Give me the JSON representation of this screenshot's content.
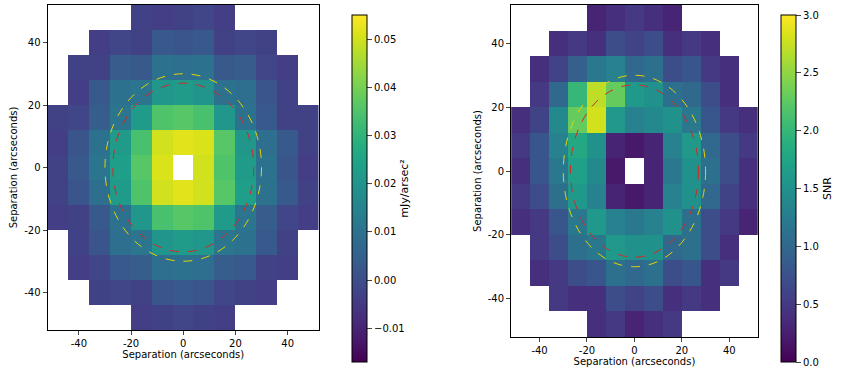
{
  "chart_data": [
    {
      "type": "heatmap",
      "color": "viridis",
      "line_style": "dashed",
      "xlabel": "Separation (arcseconds)",
      "ylabel": "Separation (arcseconds)",
      "xlim": [
        -52,
        52
      ],
      "ylim": [
        -52,
        52
      ],
      "xticks": [
        -40,
        -20,
        0,
        20,
        40
      ],
      "yticks": [
        -40,
        -20,
        0,
        20,
        40
      ],
      "x": [
        -48,
        -40,
        -32,
        -24,
        -16,
        -8,
        0,
        8,
        16,
        24,
        32,
        40,
        48
      ],
      "y": [
        -48,
        -40,
        -32,
        -24,
        -16,
        -8,
        0,
        8,
        16,
        24,
        32,
        40,
        48
      ],
      "z": [
        [
          null,
          null,
          null,
          null,
          -0.004,
          -0.003,
          -0.002,
          -0.003,
          -0.004,
          null,
          null,
          null,
          null
        ],
        [
          null,
          null,
          -0.003,
          -0.002,
          -0.003,
          0.002,
          0.003,
          0.002,
          -0.002,
          -0.003,
          -0.004,
          null,
          null
        ],
        [
          null,
          -0.004,
          -0.002,
          0.003,
          0.004,
          0.009,
          0.01,
          0.009,
          0.004,
          0.003,
          -0.003,
          -0.004,
          null
        ],
        [
          null,
          -0.003,
          0.002,
          0.009,
          0.011,
          0.02,
          0.022,
          0.021,
          0.011,
          0.01,
          0.003,
          -0.003,
          null
        ],
        [
          -0.004,
          -0.003,
          0.003,
          0.01,
          0.021,
          0.034,
          0.036,
          0.035,
          0.022,
          0.011,
          0.004,
          -0.002,
          -0.004
        ],
        [
          -0.003,
          0.002,
          0.009,
          0.022,
          0.035,
          0.05,
          0.052,
          0.05,
          0.036,
          0.023,
          0.01,
          0.003,
          -0.003
        ],
        [
          -0.003,
          0.003,
          0.011,
          0.023,
          0.036,
          0.051,
          null,
          0.05,
          0.035,
          0.022,
          0.01,
          0.002,
          -0.004
        ],
        [
          -0.004,
          0.002,
          0.01,
          0.022,
          0.034,
          0.05,
          0.052,
          0.051,
          0.036,
          0.021,
          0.009,
          0.003,
          -0.003
        ],
        [
          -0.003,
          -0.002,
          0.004,
          0.011,
          0.022,
          0.035,
          0.036,
          0.034,
          0.021,
          0.01,
          0.003,
          -0.003,
          -0.003
        ],
        [
          null,
          -0.004,
          0.003,
          0.01,
          0.011,
          0.021,
          0.022,
          0.02,
          0.01,
          0.009,
          0.002,
          -0.003,
          null
        ],
        [
          null,
          -0.003,
          -0.003,
          0.004,
          0.003,
          0.01,
          0.009,
          0.01,
          0.003,
          0.004,
          -0.002,
          -0.004,
          null
        ],
        [
          null,
          null,
          -0.004,
          -0.002,
          -0.003,
          0.003,
          0.002,
          0.003,
          -0.003,
          -0.002,
          -0.003,
          null,
          null
        ],
        [
          null,
          null,
          null,
          null,
          -0.003,
          -0.004,
          -0.003,
          -0.002,
          -0.004,
          null,
          null,
          null,
          null
        ]
      ],
      "colorbar": {
        "title": "mJy/arsec²",
        "range": [
          -0.017,
          0.055
        ],
        "ticks": [
          {
            "value": -0.01,
            "label": "−0.01"
          },
          {
            "value": 0,
            "label": "0.00"
          },
          {
            "value": 0.01,
            "label": "0.01"
          },
          {
            "value": 0.02,
            "label": "0.02"
          },
          {
            "value": 0.03,
            "label": "0.03"
          },
          {
            "value": 0.04,
            "label": "0.04"
          },
          {
            "value": 0.05,
            "label": "0.05"
          }
        ]
      },
      "circles": [
        {
          "radius": 27,
          "color": "#d62728"
        },
        {
          "radius": 30,
          "color": "#e8d200"
        }
      ]
    },
    {
      "type": "heatmap",
      "color": "viridis",
      "line_style": "dashed",
      "xlabel": "Separation (arcseconds)",
      "ylabel": "Separation (arcseconds)",
      "xlim": [
        -52,
        52
      ],
      "ylim": [
        -52,
        52
      ],
      "xticks": [
        -40,
        -20,
        0,
        20,
        40
      ],
      "yticks": [
        -40,
        -20,
        0,
        20,
        40
      ],
      "x": [
        -48,
        -40,
        -32,
        -24,
        -16,
        -8,
        0,
        8,
        16,
        24,
        32,
        40,
        48
      ],
      "y": [
        -48,
        -40,
        -32,
        -24,
        -16,
        -8,
        0,
        8,
        16,
        24,
        32,
        40,
        48
      ],
      "z": [
        [
          null,
          null,
          null,
          null,
          0.4,
          0.5,
          0.3,
          0.4,
          0.5,
          null,
          null,
          null,
          null
        ],
        [
          null,
          null,
          0.5,
          0.4,
          0.4,
          0.7,
          0.6,
          0.7,
          0.4,
          0.5,
          0.4,
          null,
          null
        ],
        [
          null,
          0.4,
          0.5,
          0.7,
          0.8,
          1.1,
          1.0,
          1.1,
          0.7,
          0.8,
          0.4,
          0.5,
          null
        ],
        [
          null,
          0.5,
          0.7,
          1.1,
          1.2,
          1.6,
          1.5,
          1.5,
          1.0,
          1.1,
          0.7,
          0.4,
          null
        ],
        [
          0.4,
          0.5,
          0.8,
          1.2,
          1.6,
          1.3,
          1.2,
          1.3,
          1.5,
          1.1,
          0.7,
          0.5,
          0.3
        ],
        [
          0.5,
          0.7,
          1.1,
          1.6,
          1.3,
          0.3,
          0.2,
          0.3,
          1.3,
          1.5,
          1.0,
          0.6,
          0.4
        ],
        [
          0.4,
          0.8,
          1.2,
          1.7,
          1.4,
          0.2,
          null,
          0.3,
          1.2,
          1.5,
          1.1,
          0.7,
          0.4
        ],
        [
          0.5,
          0.8,
          1.3,
          1.8,
          1.5,
          0.3,
          0.2,
          0.3,
          1.3,
          1.6,
          1.0,
          0.7,
          0.5
        ],
        [
          0.4,
          0.6,
          1.4,
          2.3,
          2.8,
          1.6,
          1.3,
          1.4,
          1.5,
          1.2,
          0.8,
          0.5,
          0.4
        ],
        [
          null,
          0.5,
          1.0,
          2.0,
          2.7,
          2.3,
          1.6,
          1.5,
          1.1,
          1.0,
          0.7,
          0.4,
          null
        ],
        [
          null,
          0.4,
          0.6,
          0.9,
          1.2,
          1.3,
          1.0,
          1.1,
          0.7,
          0.8,
          0.5,
          0.4,
          null
        ],
        [
          null,
          null,
          0.4,
          0.5,
          0.4,
          0.7,
          0.6,
          0.7,
          0.4,
          0.5,
          0.4,
          null,
          null
        ],
        [
          null,
          null,
          null,
          null,
          0.3,
          0.4,
          0.5,
          0.4,
          0.3,
          null,
          null,
          null,
          null
        ]
      ],
      "colorbar": {
        "title": "SNR",
        "range": [
          0,
          3
        ],
        "ticks": [
          {
            "value": 0,
            "label": "0.0"
          },
          {
            "value": 0.5,
            "label": "0.5"
          },
          {
            "value": 1,
            "label": "1.0"
          },
          {
            "value": 1.5,
            "label": "1.5"
          },
          {
            "value": 2,
            "label": "2.0"
          },
          {
            "value": 2.5,
            "label": "2.5"
          },
          {
            "value": 3,
            "label": "3.0"
          }
        ]
      },
      "circles": [
        {
          "radius": 27,
          "color": "#d62728"
        },
        {
          "radius": 30,
          "color": "#e8d200"
        }
      ]
    }
  ]
}
